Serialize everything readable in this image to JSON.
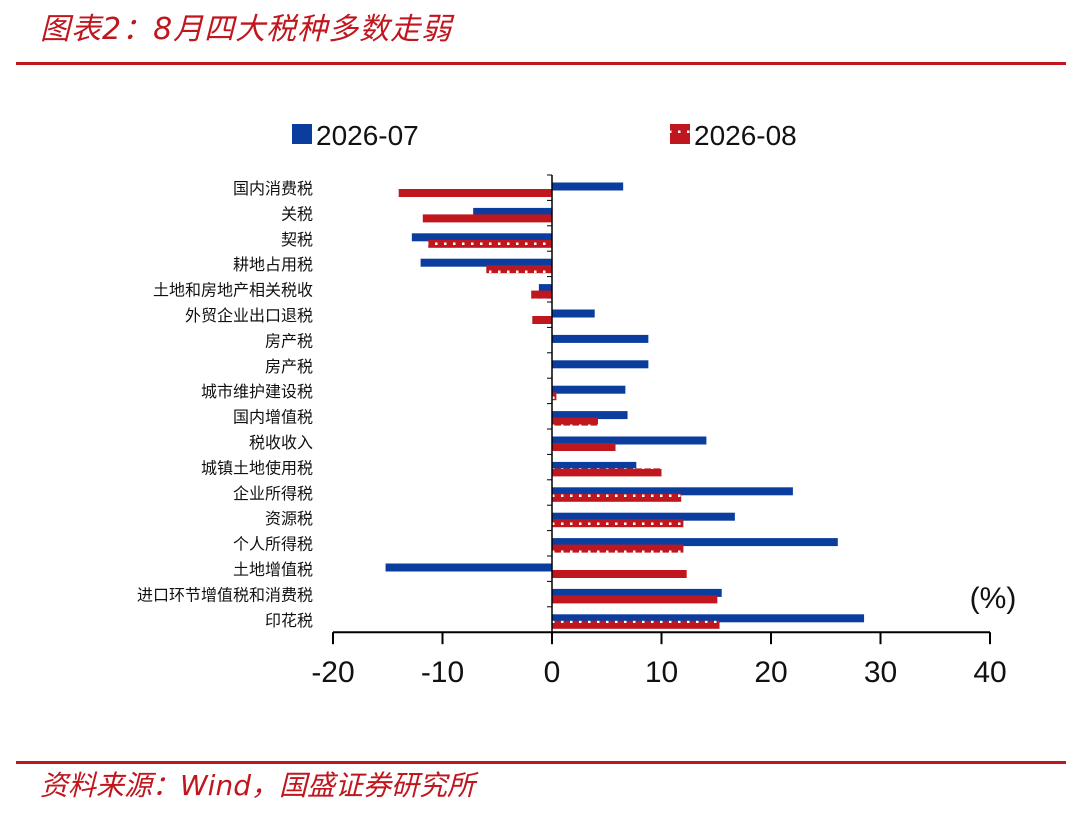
{
  "header": {
    "title": "图表2：8月四大税种多数走弱"
  },
  "footer": {
    "source": "资料来源：Wind，国盛证券研究所"
  },
  "chart_data": {
    "type": "bar",
    "orientation": "horizontal",
    "title": "",
    "xlabel": "",
    "ylabel": "",
    "unit_label": "(%)",
    "xlim": [
      -20,
      40
    ],
    "xticks": [
      -20,
      -10,
      0,
      10,
      20,
      30,
      40
    ],
    "grid": false,
    "legend_position": "top",
    "categories": [
      "国内消费税",
      "关税",
      "契税",
      "耕地占用税",
      "土地和房地产相关税收",
      "外贸企业出口退税",
      "房产税",
      "房产税",
      "城市维护建设税",
      "国内增值税",
      "税收收入",
      "城镇土地使用税",
      "企业所得税",
      "资源税",
      "个人所得税",
      "土地增值税",
      "进口环节增值税和消费税",
      "印花税"
    ],
    "series": [
      {
        "name": "2026-07",
        "color": "#0b3d9e",
        "values": [
          6.5,
          -7.2,
          -12.8,
          -12.0,
          -1.2,
          3.9,
          8.8,
          8.8,
          6.7,
          6.9,
          14.1,
          7.7,
          22.0,
          16.7,
          26.1,
          -15.2,
          15.5,
          28.5
        ]
      },
      {
        "name": "2026-08",
        "color": "#c0161e",
        "values": [
          -14.0,
          -11.8,
          -11.3,
          -6.0,
          -1.9,
          -1.8,
          0,
          0,
          0.4,
          4.2,
          5.8,
          10.0,
          11.8,
          12.0,
          12.0,
          12.3,
          15.1,
          15.3
        ]
      }
    ]
  }
}
